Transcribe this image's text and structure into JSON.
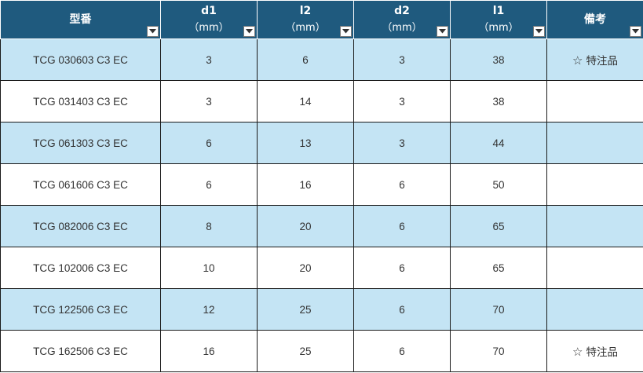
{
  "colors": {
    "header_bg": "#1f5a7e",
    "alt_row_bg": "#c4e4f4",
    "row_bg": "#ffffff"
  },
  "headers": [
    {
      "label": "型番",
      "unit": ""
    },
    {
      "label": "d1",
      "unit": "（mm）"
    },
    {
      "label": "l2",
      "unit": "（mm）"
    },
    {
      "label": "d2",
      "unit": "（mm）"
    },
    {
      "label": "l1",
      "unit": "（mm）"
    },
    {
      "label": "備考",
      "unit": ""
    }
  ],
  "filter_icon": "filter-dropdown-icon",
  "rows": [
    {
      "model": "TCG 030603 C3 EC",
      "d1": "3",
      "l2": "6",
      "d2": "3",
      "l1": "38",
      "note_star": "☆",
      "note": "特注品"
    },
    {
      "model": "TCG 031403 C3 EC",
      "d1": "3",
      "l2": "14",
      "d2": "3",
      "l1": "38",
      "note_star": "",
      "note": ""
    },
    {
      "model": "TCG 061303 C3 EC",
      "d1": "6",
      "l2": "13",
      "d2": "3",
      "l1": "44",
      "note_star": "",
      "note": ""
    },
    {
      "model": "TCG 061606 C3 EC",
      "d1": "6",
      "l2": "16",
      "d2": "6",
      "l1": "50",
      "note_star": "",
      "note": ""
    },
    {
      "model": "TCG 082006 C3 EC",
      "d1": "8",
      "l2": "20",
      "d2": "6",
      "l1": "65",
      "note_star": "",
      "note": ""
    },
    {
      "model": "TCG 102006 C3 EC",
      "d1": "10",
      "l2": "20",
      "d2": "6",
      "l1": "65",
      "note_star": "",
      "note": ""
    },
    {
      "model": "TCG 122506 C3 EC",
      "d1": "12",
      "l2": "25",
      "d2": "6",
      "l1": "70",
      "note_star": "",
      "note": ""
    },
    {
      "model": "TCG 162506 C3 EC",
      "d1": "16",
      "l2": "25",
      "d2": "6",
      "l1": "70",
      "note_star": "☆",
      "note": "特注品"
    }
  ]
}
